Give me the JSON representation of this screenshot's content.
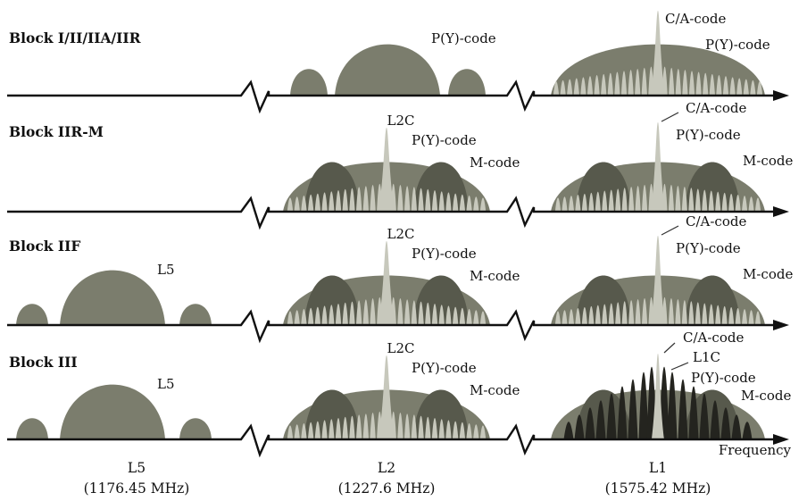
{
  "colors": {
    "main_lobe": "#7b7d6d",
    "side_lobe": "#5f6155",
    "mcode": "#57594c",
    "light_comb": "#c7c8bc",
    "l1c": "#24241f",
    "axis": "#111111"
  },
  "blocks": [
    {
      "title": "Block I/II/IIA/IIR",
      "l5": null,
      "l2": {
        "labels": [
          "P(Y)-code"
        ]
      },
      "l1": {
        "labels": [
          "C/A-code",
          "P(Y)-code"
        ]
      }
    },
    {
      "title": "Block IIR-M",
      "l5": null,
      "l2": {
        "labels": [
          "L2C",
          "P(Y)-code",
          "M-code"
        ]
      },
      "l1": {
        "labels": [
          "C/A-code",
          "P(Y)-code",
          "M-code"
        ]
      }
    },
    {
      "title": "Block IIF",
      "l5": {
        "labels": [
          "L5"
        ]
      },
      "l2": {
        "labels": [
          "L2C",
          "P(Y)-code",
          "M-code"
        ]
      },
      "l1": {
        "labels": [
          "C/A-code",
          "P(Y)-code",
          "M-code"
        ]
      }
    },
    {
      "title": "Block III",
      "l5": {
        "labels": [
          "L5"
        ]
      },
      "l2": {
        "labels": [
          "L2C",
          "P(Y)-code",
          "M-code"
        ]
      },
      "l1": {
        "labels": [
          "C/A-code",
          "L1C",
          "P(Y)-code",
          "M-code"
        ]
      }
    }
  ],
  "axis_label": "Frequency",
  "bands": [
    {
      "name": "L5",
      "freq": "(1176.45 MHz)"
    },
    {
      "name": "L2",
      "freq": "(1227.6 MHz)"
    },
    {
      "name": "L1",
      "freq": "(1575.42 MHz)"
    }
  ]
}
